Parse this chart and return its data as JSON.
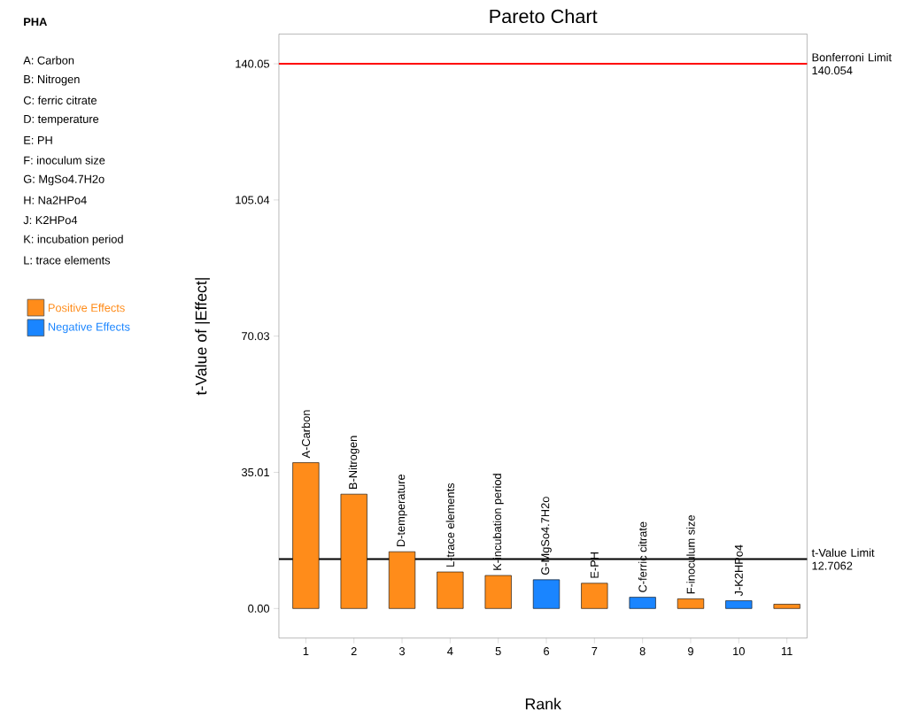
{
  "chart_data": {
    "type": "bar",
    "title": "Pareto Chart",
    "xlabel": "Rank",
    "ylabel": "t-Value of |Effect|",
    "categories": [
      "1",
      "2",
      "3",
      "4",
      "5",
      "6",
      "7",
      "8",
      "9",
      "10",
      "11"
    ],
    "series": [
      {
        "name": "Positive Effects",
        "color": "#ff8c1a",
        "values": [
          37.5,
          29.4,
          14.6,
          9.4,
          8.5,
          null,
          6.5,
          null,
          2.5,
          null,
          1.1
        ]
      },
      {
        "name": "Negative Effects",
        "color": "#1a85ff",
        "values": [
          null,
          null,
          null,
          null,
          null,
          7.4,
          null,
          2.9,
          null,
          2.0,
          null
        ]
      }
    ],
    "ylim": [
      -7.6,
      147.7
    ],
    "yticks": [
      {
        "value": 0,
        "label": "0.00"
      },
      35.01,
      70.03,
      105.04,
      140.05
    ],
    "ref_lines": [
      {
        "axis": "y",
        "value": 140.054,
        "label": "Bonferroni Limit 140.054",
        "color": "#ff0000"
      },
      {
        "axis": "y",
        "value": 12.7062,
        "label": "t-Value Limit 12.7062",
        "color": "#000000"
      }
    ],
    "legend": "left",
    "annotations": [
      "PHA",
      "A: Carbon",
      "B: Nitrogen",
      "C: ferric citrate",
      "D: temperature",
      "E: PH",
      "F: inoculum size",
      "G: MgSo4.7H2o",
      "H: Na2HPo4",
      "J: K2HPo4",
      "K: incubation period",
      "L: trace elements",
      {
        "text": "A-Carbon",
        "x": "1",
        "y": 37.5
      },
      {
        "text": "B-Nitrogen",
        "x": "2",
        "y": 29.4
      },
      {
        "text": "D-temperature",
        "x": "3",
        "y": 14.6
      },
      {
        "text": "L-trace elements",
        "x": "4",
        "y": 9.4
      },
      {
        "text": "K-incubation period",
        "x": "5",
        "y": 8.5
      },
      {
        "text": "G-MgSo4.7H2o",
        "x": "6",
        "y": 7.4
      },
      {
        "text": "E-PH",
        "x": "7",
        "y": 6.5
      },
      {
        "text": "C-ferric citrate",
        "x": "8",
        "y": 2.9
      },
      {
        "text": "F-inoculum size",
        "x": "9",
        "y": 2.5
      },
      {
        "text": "J-K2HPo4",
        "x": "10",
        "y": 2.0
      }
    ]
  }
}
